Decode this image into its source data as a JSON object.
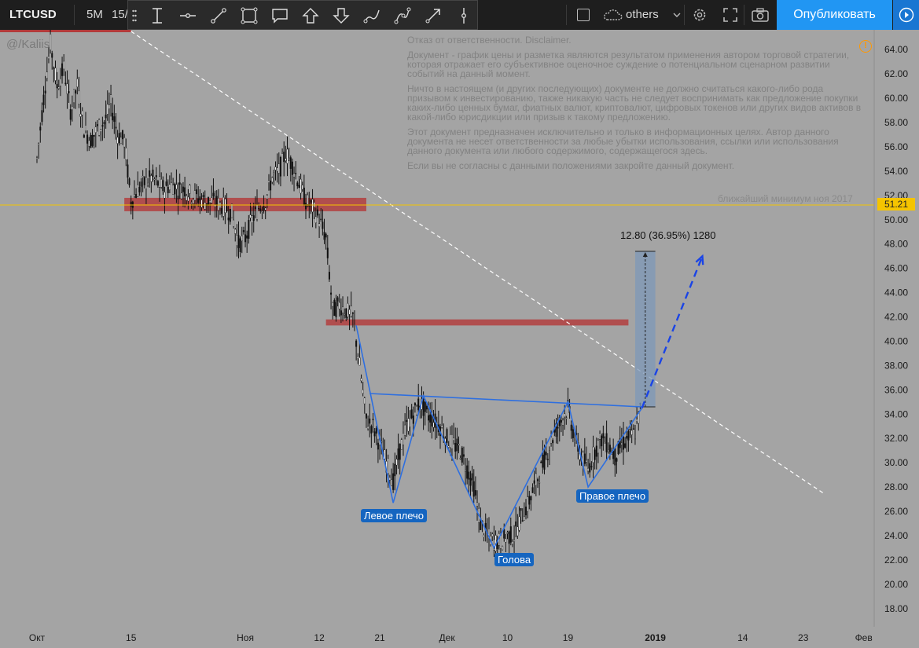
{
  "toolbar": {
    "symbol": "LTCUSD",
    "interval": "5M",
    "interval_2": "15/",
    "others_label": "others",
    "publish_label": "Опубликовать",
    "drawing_tools": [
      "cursor-icon",
      "horizontal-line-icon",
      "trend-line-icon",
      "rectangle-icon",
      "callout-icon",
      "arrow-up-icon",
      "arrow-down-icon",
      "brush-icon",
      "path-icon",
      "arrow-icon",
      "vertical-line-icon"
    ]
  },
  "watermark": "@/Kaliis",
  "disclaimer": [
    "Отказ от ответственности. Disclaimer.",
    "Документ - график цены и разметка являются результатом применения автором торговой стратегии, которая отражает его субъективное оценочное суждение о потенциальном сценарном развитии событий на данный момент.",
    "Ничто в настоящем (и других последующих) документе не должно считаться какого-либо рода призывом к инвестированию, также никакую часть не следует воспринимать как предложение покупки каких-либо ценных бумаг, фиатных валют, криптовалют, цифровых токенов или других видов активов в какой-либо юрисдикции или призыв к такому предложению.",
    "Этот документ предназначен исключительно и только в информационных целях. Автор данного документа не несет ответственности за любые убытки использования, ссылки или использования данного документа или любого содержимого, содержащегося здесь.",
    "Если вы не согласны с данными положениями закройте данный документ."
  ],
  "chart_data": {
    "type": "candlestick",
    "symbol": "LTCUSD",
    "ylim": [
      16.5,
      65.5
    ],
    "y_ticks": [
      "64.00",
      "62.00",
      "60.00",
      "58.00",
      "56.00",
      "54.00",
      "52.00",
      "50.00",
      "48.00",
      "46.00",
      "44.00",
      "42.00",
      "40.00",
      "38.00",
      "36.00",
      "34.00",
      "32.00",
      "30.00",
      "28.00",
      "26.00",
      "24.00",
      "22.00",
      "20.00",
      "18.00"
    ],
    "x_ticks": [
      {
        "label": "Окт",
        "day": 0
      },
      {
        "label": "15",
        "day": 14
      },
      {
        "label": "Ноя",
        "day": 31
      },
      {
        "label": "12",
        "day": 42
      },
      {
        "label": "21",
        "day": 51
      },
      {
        "label": "Дек",
        "day": 61
      },
      {
        "label": "10",
        "day": 70
      },
      {
        "label": "19",
        "day": 79
      },
      {
        "label": "2019",
        "day": 92,
        "bold": true
      },
      {
        "label": "14",
        "day": 105
      },
      {
        "label": "23",
        "day": 114
      },
      {
        "label": "Фев",
        "day": 123
      }
    ],
    "current_price": {
      "value": 51.21,
      "label": "51.21",
      "color": "#f5c400"
    },
    "annotations": {
      "min_label": "ближайший минимум ноя 2017",
      "measure_label": "12.80 (36.95%) 1280",
      "left_shoulder": "Левое плечо",
      "head": "Голова",
      "right_shoulder": "Правое плечо"
    },
    "zones": [
      {
        "day_from": 13,
        "day_to": 49,
        "y_from": 50.7,
        "y_to": 51.8,
        "color": "#b23a3a"
      },
      {
        "day_from": 43,
        "day_to": 88,
        "y_from": 41.3,
        "y_to": 41.8,
        "color": "#b23a3a"
      }
    ],
    "trendline": {
      "points": [
        [
          14,
          65.5
        ],
        [
          117,
          27.5
        ]
      ],
      "color": "#ffffff",
      "dash": true
    },
    "pattern": {
      "color": "#2e6fe0",
      "points": [
        [
          47.5,
          41.3
        ],
        [
          53,
          26.7
        ],
        [
          57.5,
          35.5
        ],
        [
          68,
          23.0
        ],
        [
          79,
          35.0
        ],
        [
          82,
          28.0
        ],
        [
          90,
          34.5
        ]
      ],
      "neckline": [
        [
          49.5,
          35.7
        ],
        [
          90,
          34.6
        ]
      ],
      "projection": [
        [
          90,
          34.5
        ],
        [
          99,
          47.0
        ]
      ]
    },
    "measure": {
      "day_from": 89,
      "day_to": 92,
      "y_from": 34.6,
      "y_to": 47.4,
      "color": "#7d98b8"
    },
    "price_path": [
      [
        0,
        55.0
      ],
      [
        1,
        60.0
      ],
      [
        2,
        64.5
      ],
      [
        3,
        61.0
      ],
      [
        4,
        62.5
      ],
      [
        5,
        59.0
      ],
      [
        6,
        61.0
      ],
      [
        7,
        57.5
      ],
      [
        8,
        56.5
      ],
      [
        9,
        57.5
      ],
      [
        10,
        58.0
      ],
      [
        11,
        59.5
      ],
      [
        12,
        57.0
      ],
      [
        13,
        56.5
      ],
      [
        14,
        51.5
      ],
      [
        15,
        52.5
      ],
      [
        16,
        53.0
      ],
      [
        17,
        53.5
      ],
      [
        18,
        53.0
      ],
      [
        19,
        52.5
      ],
      [
        20,
        53.0
      ],
      [
        21,
        52.5
      ],
      [
        22,
        52.5
      ],
      [
        23,
        52.0
      ],
      [
        24,
        51.8
      ],
      [
        25,
        51.5
      ],
      [
        26,
        51.5
      ],
      [
        27,
        51.3
      ],
      [
        28,
        51.0
      ],
      [
        29,
        50.5
      ],
      [
        30,
        48.0
      ],
      [
        31,
        48.5
      ],
      [
        32,
        50.0
      ],
      [
        33,
        51.0
      ],
      [
        34,
        51.5
      ],
      [
        35,
        53.5
      ],
      [
        36,
        54.0
      ],
      [
        37,
        55.5
      ],
      [
        38,
        54.5
      ],
      [
        39,
        53.0
      ],
      [
        40,
        51.5
      ],
      [
        41,
        51.0
      ],
      [
        42,
        50.0
      ],
      [
        43,
        48.5
      ],
      [
        44,
        42.5
      ],
      [
        45,
        43.0
      ],
      [
        46,
        42.5
      ],
      [
        47,
        42.0
      ],
      [
        48,
        38.0
      ],
      [
        49,
        33.5
      ],
      [
        50,
        33.0
      ],
      [
        51,
        31.5
      ],
      [
        52,
        30.0
      ],
      [
        53,
        28.5
      ],
      [
        54,
        31.0
      ],
      [
        55,
        33.0
      ],
      [
        56,
        34.0
      ],
      [
        57,
        35.0
      ],
      [
        58,
        34.0
      ],
      [
        59,
        33.5
      ],
      [
        60,
        33.0
      ],
      [
        61,
        32.0
      ],
      [
        62,
        31.5
      ],
      [
        63,
        31.0
      ],
      [
        64,
        29.5
      ],
      [
        65,
        28.0
      ],
      [
        66,
        25.0
      ],
      [
        67,
        24.0
      ],
      [
        68,
        23.5
      ],
      [
        69,
        23.5
      ],
      [
        70,
        24.0
      ],
      [
        71,
        24.0
      ],
      [
        72,
        25.5
      ],
      [
        73,
        26.5
      ],
      [
        74,
        28.0
      ],
      [
        75,
        29.5
      ],
      [
        76,
        31.0
      ],
      [
        77,
        32.5
      ],
      [
        78,
        33.5
      ],
      [
        79,
        34.5
      ],
      [
        80,
        32.0
      ],
      [
        81,
        30.5
      ],
      [
        82,
        29.5
      ],
      [
        83,
        31.0
      ],
      [
        84,
        32.0
      ],
      [
        85,
        31.5
      ],
      [
        86,
        30.5
      ],
      [
        87,
        31.5
      ],
      [
        88,
        32.0
      ],
      [
        89,
        32.5
      ],
      [
        90,
        35.0
      ]
    ]
  }
}
